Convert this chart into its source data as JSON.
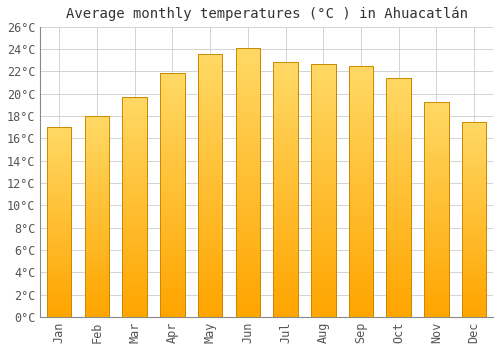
{
  "title": "Average monthly temperatures (°C ) in Ahuacatlán",
  "months": [
    "Jan",
    "Feb",
    "Mar",
    "Apr",
    "May",
    "Jun",
    "Jul",
    "Aug",
    "Sep",
    "Oct",
    "Nov",
    "Dec"
  ],
  "values": [
    17.0,
    18.0,
    19.7,
    21.9,
    23.6,
    24.1,
    22.8,
    22.7,
    22.5,
    21.4,
    19.3,
    17.5
  ],
  "bar_color_top": "#FFD966",
  "bar_color_bottom": "#FFA500",
  "bar_edge_color": "#CC8800",
  "ylim": [
    0,
    26
  ],
  "ytick_step": 2,
  "background_color": "#FFFFFF",
  "grid_color": "#CCCCCC",
  "title_fontsize": 10,
  "tick_fontsize": 8.5,
  "font_family": "monospace"
}
